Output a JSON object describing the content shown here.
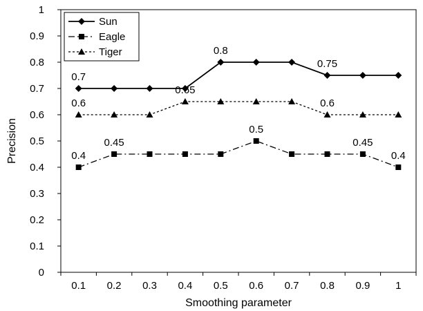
{
  "chart_data": {
    "type": "line",
    "xlabel": "Smoothing parameter",
    "ylabel": "Precision",
    "x": [
      "0.1",
      "0.2",
      "0.3",
      "0.4",
      "0.5",
      "0.6",
      "0.7",
      "0.8",
      "0.9",
      "1"
    ],
    "ylim": [
      0,
      1
    ],
    "yticks": [
      "0",
      "0.1",
      "0.2",
      "0.3",
      "0.4",
      "0.5",
      "0.6",
      "0.7",
      "0.8",
      "0.9",
      "1"
    ],
    "grid": false,
    "legend_position": "top-left",
    "series": [
      {
        "name": "Sun",
        "values": [
          0.7,
          0.7,
          0.7,
          0.7,
          0.8,
          0.8,
          0.8,
          0.75,
          0.75,
          0.75
        ],
        "marker": "diamond",
        "line_style": "solid",
        "color": "#000000"
      },
      {
        "name": "Eagle",
        "values": [
          0.4,
          0.45,
          0.45,
          0.45,
          0.45,
          0.5,
          0.45,
          0.45,
          0.45,
          0.4
        ],
        "marker": "square",
        "line_style": "dash-dot",
        "color": "#000000"
      },
      {
        "name": "Tiger",
        "values": [
          0.6,
          0.6,
          0.6,
          0.65,
          0.65,
          0.65,
          0.65,
          0.6,
          0.6,
          0.6
        ],
        "marker": "triangle",
        "line_style": "dotted",
        "color": "#000000"
      }
    ],
    "annotations": [
      {
        "text": "0.7",
        "x": "0.1",
        "y": 0.7
      },
      {
        "text": "0.8",
        "x": "0.5",
        "y": 0.8
      },
      {
        "text": "0.75",
        "x": "0.8",
        "y": 0.75
      },
      {
        "text": "0.6",
        "x": "0.1",
        "y": 0.6
      },
      {
        "text": "0.65",
        "x": "0.4",
        "y": 0.65
      },
      {
        "text": "0.6",
        "x": "0.8",
        "y": 0.6
      },
      {
        "text": "0.4",
        "x": "0.1",
        "y": 0.4
      },
      {
        "text": "0.45",
        "x": "0.2",
        "y": 0.45
      },
      {
        "text": "0.5",
        "x": "0.6",
        "y": 0.5
      },
      {
        "text": "0.45",
        "x": "0.9",
        "y": 0.45
      },
      {
        "text": "0.4",
        "x": "1",
        "y": 0.4
      }
    ]
  }
}
